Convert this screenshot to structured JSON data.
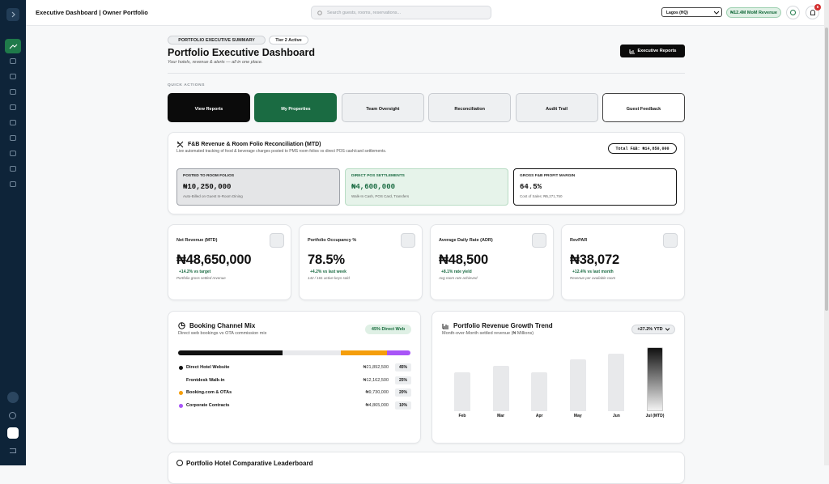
{
  "topbar": {
    "title": "Executive Dashboard | Owner Portfolio",
    "search_placeholder": "Search guests, rooms, reservations...",
    "location": "Lagos (HQ)",
    "revenue_badge": "₦12.4M MoM Revenue",
    "notifications": 6
  },
  "header": {
    "badges": [
      "PORTFOLIO EXECUTIVE SUMMARY",
      "Tier 2 Active"
    ],
    "title": "Portfolio Executive Dashboard",
    "subtitle": "Your hotels, revenue & alerts — all in one place.",
    "button": "Executive Reports"
  },
  "quick_actions": {
    "label": "QUICK ACTIONS",
    "items": [
      "View Reports",
      "My Properties",
      "Team Oversight",
      "Reconciliation",
      "Audit Trail",
      "Guest Feedback"
    ]
  },
  "fnb": {
    "title": "F&B Revenue & Room Folio Reconciliation (MTD)",
    "description": "Live automated tracking of food & beverage charges posted to PMS room folios vs direct POS cash/card settlements.",
    "total": "Total F&B: ₦14,850,000",
    "boxes": [
      {
        "label": "POSTED TO ROOM FOLIOS",
        "value": "₦10,250,000",
        "note": "Auto-Billed on Guest In-Room Dining"
      },
      {
        "label": "DIRECT POS SETTLEMENTS",
        "value": "₦4,600,000",
        "note": "Walk-In Cash, POS Card, Transfers"
      },
      {
        "label": "GROSS F&B PROFIT MARGIN",
        "value": "64.5%",
        "note": "Cost of Sales: ₦5,271,750"
      }
    ]
  },
  "kpis": [
    {
      "label": "Net Revenue (MTD)",
      "value": "₦48,650,000",
      "change": "+14.2% vs target",
      "note": "Portfolio gross settled revenue"
    },
    {
      "label": "Portfolio Occupancy %",
      "value": "78.5%",
      "change": "+4.2% vs last week",
      "note": "142 / 181 active keys sold"
    },
    {
      "label": "Average Daily Rate (ADR)",
      "value": "₦48,500",
      "change": "+8.1% rate yield",
      "note": "Avg room rate achieved"
    },
    {
      "label": "RevPAR",
      "value": "₦38,072",
      "change": "+12.4% vs last month",
      "note": "Revenue per available room"
    }
  ],
  "channel_mix": {
    "title": "Booking Channel Mix",
    "subtitle": "Direct web bookings vs OTA commission mix",
    "badge": "45% Direct Web",
    "channels": [
      {
        "name": "Direct Hotel Website",
        "amount": "₦21,892,500",
        "share": 45,
        "share_label": "45%",
        "color": "#111111"
      },
      {
        "name": "Frontdesk Walk-in",
        "amount": "₦12,162,500",
        "share": 25,
        "share_label": "25%",
        "color": "#e8e9ec"
      },
      {
        "name": "Booking.com & OTAs",
        "amount": "₦9,730,000",
        "share": 20,
        "share_label": "20%",
        "color": "#f59e0b"
      },
      {
        "name": "Corporate Contracts",
        "amount": "₦4,865,000",
        "share": 10,
        "share_label": "10%",
        "color": "#a855f7"
      }
    ]
  },
  "trend": {
    "title": "Portfolio Revenue Growth Trend",
    "subtitle": "Month-over-Month settled revenue (₦ Millions)",
    "badge": "+27.2% YTD",
    "categories": [
      "Feb",
      "Mar",
      "Apr",
      "May",
      "Jun",
      "Jul (MTD)"
    ],
    "values": [
      30,
      35,
      30,
      40,
      44,
      49
    ]
  },
  "leaderboard": {
    "title": "Portfolio Hotel Comparative Leaderboard"
  }
}
